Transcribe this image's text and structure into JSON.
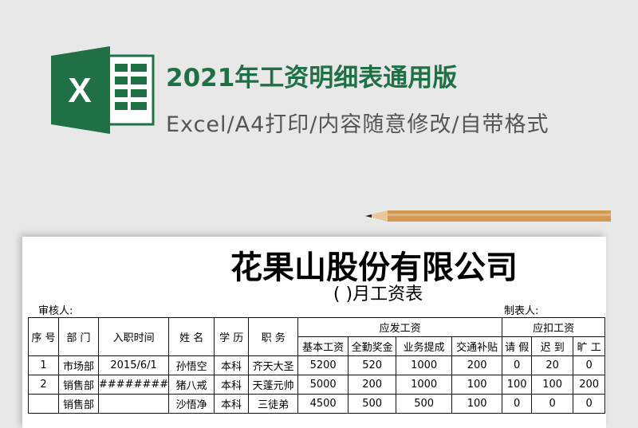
{
  "header": {
    "title": "2021年工资明细表通用版",
    "subtitle": "Excel/A4打印/内容随意修改/自带格式",
    "logo_letter": "X",
    "brand_color": "#1f7145"
  },
  "sheet": {
    "company": "花果山股份有限公司",
    "month_title": "(  )月工资表",
    "reviewer_label": "审核人:",
    "maker_label": "制表人:",
    "headers": {
      "index": "序 号",
      "dept": "部 门",
      "hire_date": "入职时间",
      "name": "姓 名",
      "education": "学 历",
      "position": "职 务",
      "payable": "应发工资",
      "deductions": "应扣工资",
      "base": "基本工资",
      "attendance": "全勤奖金",
      "commission": "业务提成",
      "transport": "交通补贴",
      "leave": "请 假",
      "late": "迟 到",
      "absent": "旷 工"
    },
    "rows": [
      [
        "1",
        "市场部",
        "2015/6/1",
        "孙悟空",
        "本科",
        "齐天大圣",
        "5200",
        "520",
        "1000",
        "200",
        "0",
        "20",
        "0"
      ],
      [
        "2",
        "销售部",
        "########",
        "猪八戒",
        "本科",
        "天蓬元帅",
        "5000",
        "200",
        "1000",
        "100",
        "100",
        "100",
        "200"
      ],
      [
        "",
        "销售部",
        "",
        "沙悟净",
        "本科",
        "三徒弟",
        "4500",
        "500",
        "500",
        "100",
        "0",
        "0",
        "0"
      ]
    ]
  }
}
